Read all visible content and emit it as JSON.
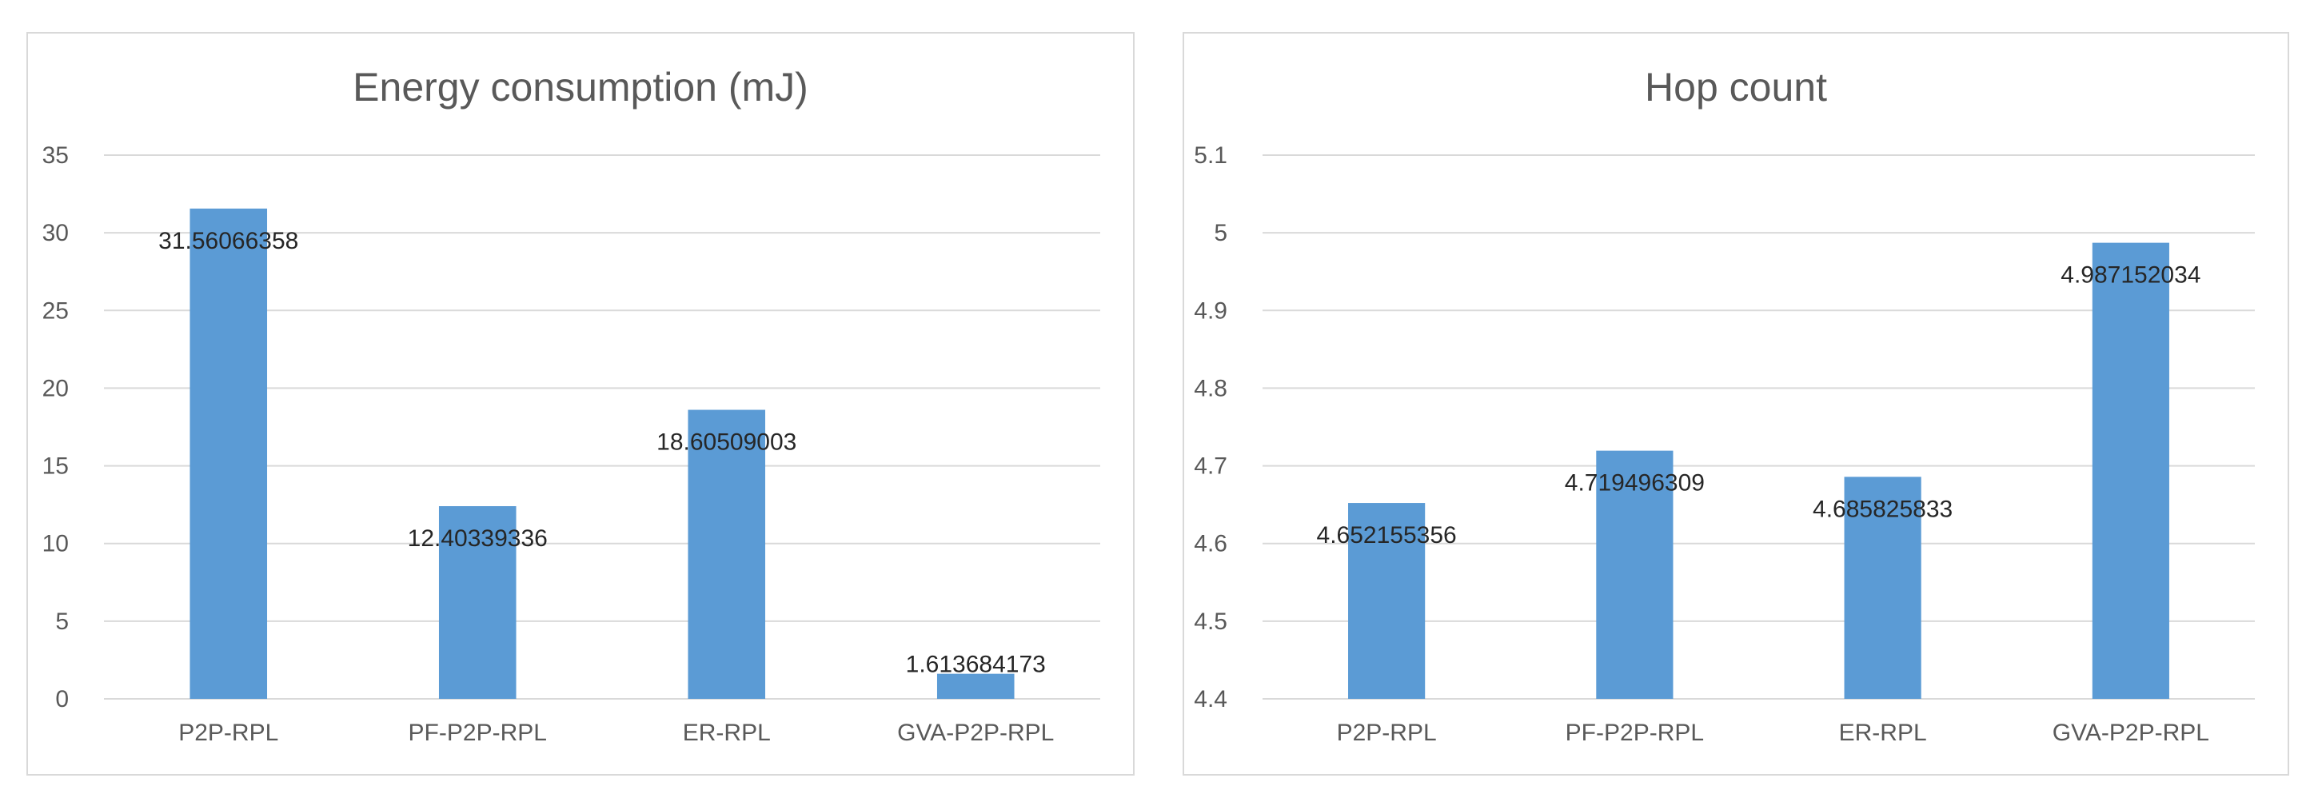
{
  "chart_data": [
    {
      "type": "bar",
      "title": "Energy consumption (mJ)",
      "categories": [
        "P2P-RPL",
        "PF-P2P-RPL",
        "ER-RPL",
        "GVA-P2P-RPL"
      ],
      "values": [
        31.56066358,
        12.40339336,
        18.60509003,
        1.613684173
      ],
      "data_labels": [
        "31.56066358",
        "12.40339336",
        "18.60509003",
        "1.613684173"
      ],
      "ylim": [
        0,
        35
      ],
      "yticks": [
        "0",
        "5",
        "10",
        "15",
        "20",
        "25",
        "30",
        "35"
      ],
      "grid": true,
      "bar_color": "#5b9bd5"
    },
    {
      "type": "bar",
      "title": "Hop count",
      "categories": [
        "P2P-RPL",
        "PF-P2P-RPL",
        "ER-RPL",
        "GVA-P2P-RPL"
      ],
      "values": [
        4.652155356,
        4.719496309,
        4.685825833,
        4.987152034
      ],
      "data_labels": [
        "4.652155356",
        "4.719496309",
        "4.685825833",
        "4.987152034"
      ],
      "ylim": [
        4.4,
        5.1
      ],
      "yticks": [
        "4.4",
        "4.5",
        "4.6",
        "4.7",
        "4.8",
        "4.9",
        "5",
        "5.1"
      ],
      "grid": true,
      "bar_color": "#5b9bd5"
    }
  ]
}
